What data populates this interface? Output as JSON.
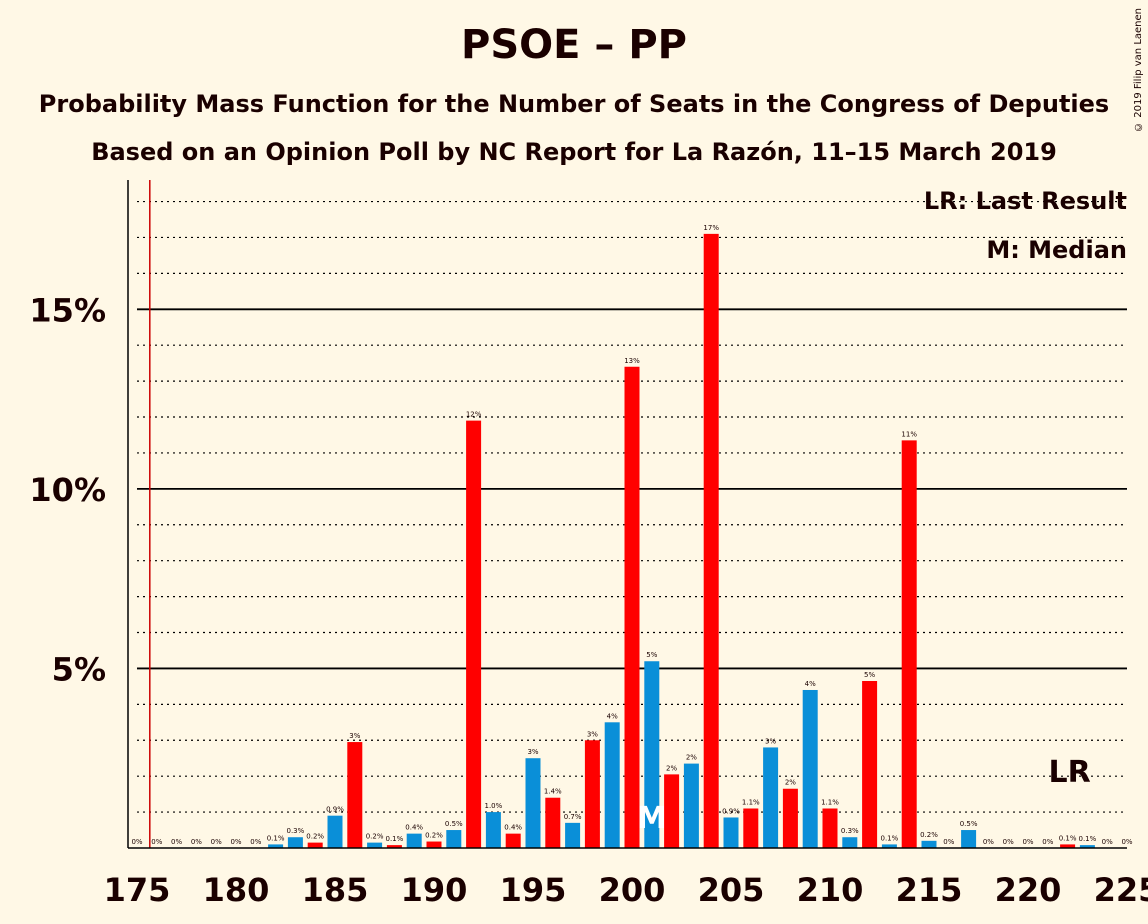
{
  "title": "PSOE – PP",
  "subtitle1": "Probability Mass Function for the Number of Seats in the Congress of Deputies",
  "subtitle2": "Based on an Opinion Poll by NC Report for La Razón, 11–15 March 2019",
  "copyright": "© 2019 Filip van Laenen",
  "legend": {
    "last_result": "LR: Last Result",
    "median": "M: Median"
  },
  "markers": {
    "median_label": "M",
    "last_result_label": "LR"
  },
  "colors": {
    "background": "#fff8e6",
    "red": "#ff0000",
    "blue": "#0a8fd8",
    "text": "#1a0000",
    "lr_line": "#cc0000"
  },
  "chart_data": {
    "type": "bar",
    "xlim": [
      175,
      225
    ],
    "ylim": [
      0,
      18.6
    ],
    "x_ticks": [
      "175",
      "180",
      "185",
      "190",
      "195",
      "200",
      "205",
      "210",
      "215",
      "220",
      "225"
    ],
    "y_ticks": [
      {
        "value": 5,
        "label": "5%"
      },
      {
        "value": 10,
        "label": "10%"
      },
      {
        "value": 15,
        "label": "15%"
      }
    ],
    "last_result_seat": 176,
    "median_seat": 201,
    "lr_label_seat": 222,
    "bars": [
      {
        "seat": 175,
        "value": 0,
        "label": "0%",
        "color": "red"
      },
      {
        "seat": 176,
        "value": 0,
        "label": "0%",
        "color": "red"
      },
      {
        "seat": 177,
        "value": 0,
        "label": "0%",
        "color": "red"
      },
      {
        "seat": 178,
        "value": 0,
        "label": "0%",
        "color": "red"
      },
      {
        "seat": 179,
        "value": 0,
        "label": "0%",
        "color": "red"
      },
      {
        "seat": 180,
        "value": 0,
        "label": "0%",
        "color": "red"
      },
      {
        "seat": 181,
        "value": 0,
        "label": "0%",
        "color": "red"
      },
      {
        "seat": 182,
        "value": 0.1,
        "label": "0.1%",
        "color": "blue"
      },
      {
        "seat": 183,
        "value": 0.3,
        "label": "0.3%",
        "color": "blue"
      },
      {
        "seat": 184,
        "value": 0.15,
        "label": "0.2%",
        "color": "red"
      },
      {
        "seat": 185,
        "value": 0.9,
        "label": "0.9%",
        "color": "blue"
      },
      {
        "seat": 186,
        "value": 2.95,
        "label": "3%",
        "color": "red"
      },
      {
        "seat": 187,
        "value": 0.15,
        "label": "0.2%",
        "color": "blue"
      },
      {
        "seat": 188,
        "value": 0.08,
        "label": "0.1%",
        "color": "red"
      },
      {
        "seat": 189,
        "value": 0.4,
        "label": "0.4%",
        "color": "blue"
      },
      {
        "seat": 190,
        "value": 0.18,
        "label": "0.2%",
        "color": "red"
      },
      {
        "seat": 191,
        "value": 0.5,
        "label": "0.5%",
        "color": "blue"
      },
      {
        "seat": 192,
        "value": 11.9,
        "label": "12%",
        "color": "red"
      },
      {
        "seat": 193,
        "value": 1.0,
        "label": "1.0%",
        "color": "blue"
      },
      {
        "seat": 194,
        "value": 0.4,
        "label": "0.4%",
        "color": "red"
      },
      {
        "seat": 195,
        "value": 2.5,
        "label": "3%",
        "color": "blue"
      },
      {
        "seat": 196,
        "value": 1.4,
        "label": "1.4%",
        "color": "red"
      },
      {
        "seat": 197,
        "value": 0.7,
        "label": "0.7%",
        "color": "blue"
      },
      {
        "seat": 198,
        "value": 3.0,
        "label": "3%",
        "color": "red"
      },
      {
        "seat": 199,
        "value": 3.5,
        "label": "4%",
        "color": "blue"
      },
      {
        "seat": 200,
        "value": 13.4,
        "label": "13%",
        "color": "red"
      },
      {
        "seat": 201,
        "value": 5.2,
        "label": "5%",
        "color": "blue"
      },
      {
        "seat": 202,
        "value": 2.05,
        "label": "2%",
        "color": "red"
      },
      {
        "seat": 203,
        "value": 2.35,
        "label": "2%",
        "color": "blue"
      },
      {
        "seat": 204,
        "value": 17.1,
        "label": "17%",
        "color": "red"
      },
      {
        "seat": 205,
        "value": 0.85,
        "label": "0.9%",
        "color": "blue"
      },
      {
        "seat": 206,
        "value": 1.1,
        "label": "1.1%",
        "color": "red"
      },
      {
        "seat": 207,
        "value": 2.8,
        "label": "3%",
        "color": "blue"
      },
      {
        "seat": 208,
        "value": 1.65,
        "label": "2%",
        "color": "red"
      },
      {
        "seat": 209,
        "value": 4.4,
        "label": "4%",
        "color": "blue"
      },
      {
        "seat": 210,
        "value": 1.1,
        "label": "1.1%",
        "color": "red"
      },
      {
        "seat": 211,
        "value": 0.3,
        "label": "0.3%",
        "color": "blue"
      },
      {
        "seat": 212,
        "value": 4.65,
        "label": "5%",
        "color": "red"
      },
      {
        "seat": 213,
        "value": 0.1,
        "label": "0.1%",
        "color": "blue"
      },
      {
        "seat": 214,
        "value": 11.35,
        "label": "11%",
        "color": "red"
      },
      {
        "seat": 215,
        "value": 0.2,
        "label": "0.2%",
        "color": "blue"
      },
      {
        "seat": 216,
        "value": 0,
        "label": "0%",
        "color": "red"
      },
      {
        "seat": 217,
        "value": 0.5,
        "label": "0.5%",
        "color": "blue"
      },
      {
        "seat": 218,
        "value": 0,
        "label": "0%",
        "color": "red"
      },
      {
        "seat": 219,
        "value": 0,
        "label": "0%",
        "color": "blue"
      },
      {
        "seat": 220,
        "value": 0,
        "label": "0%",
        "color": "red"
      },
      {
        "seat": 221,
        "value": 0,
        "label": "0%",
        "color": "blue"
      },
      {
        "seat": 222,
        "value": 0.1,
        "label": "0.1%",
        "color": "red"
      },
      {
        "seat": 223,
        "value": 0.08,
        "label": "0.1%",
        "color": "blue"
      },
      {
        "seat": 224,
        "value": 0,
        "label": "0%",
        "color": "red"
      },
      {
        "seat": 225,
        "value": 0,
        "label": "0%",
        "color": "blue"
      }
    ]
  }
}
